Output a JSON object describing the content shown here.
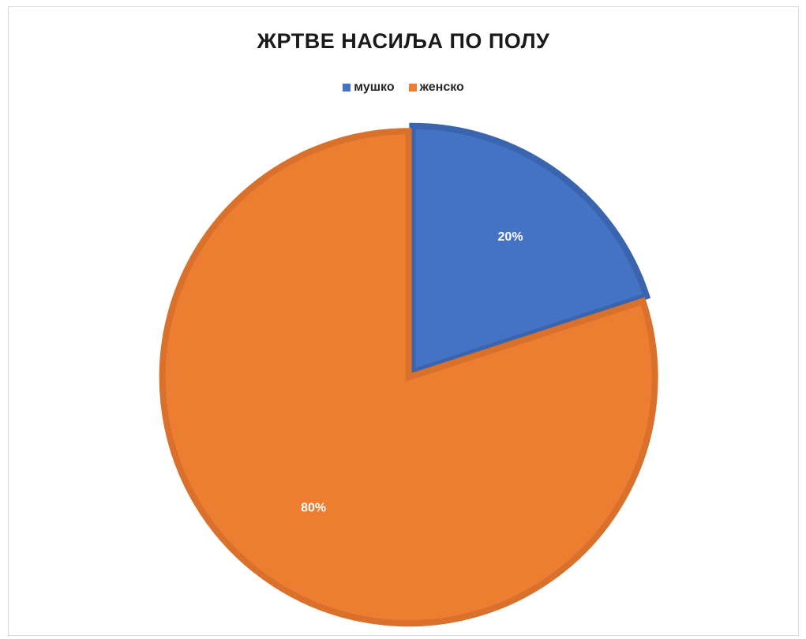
{
  "chart_data": {
    "type": "pie",
    "title": "ЖРТВЕ НАСИЉА ПО ПОЛУ",
    "categories": [
      "мушко",
      "женско"
    ],
    "values": [
      20,
      80
    ],
    "data_labels": [
      "20%",
      "80%"
    ],
    "colors": [
      "#4472C4",
      "#ED7D31"
    ],
    "edge_colors": [
      "#3a64ad",
      "#d9702b"
    ],
    "legend_position": "top"
  }
}
